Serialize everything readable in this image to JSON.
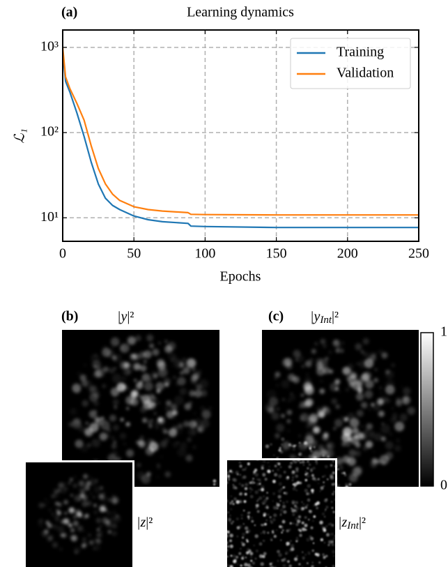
{
  "chart_data": {
    "type": "line",
    "label": "(a)",
    "title": "Learning dynamics",
    "x_label": "Epochs",
    "y_label": "ℒ₁",
    "x": [
      0,
      2,
      5,
      10,
      15,
      20,
      25,
      30,
      35,
      40,
      50,
      60,
      70,
      88,
      90,
      100,
      150,
      200,
      250
    ],
    "series": [
      {
        "name": "Training",
        "color": "#1f77b4",
        "values": [
          900,
          400,
          300,
          170,
          90,
          45,
          25,
          17,
          14,
          12.5,
          10.5,
          9.5,
          9,
          8.6,
          8,
          7.9,
          7.7,
          7.7,
          7.7
        ]
      },
      {
        "name": "Validation",
        "color": "#ff7f0e",
        "values": [
          1000,
          450,
          330,
          220,
          140,
          70,
          38,
          25,
          19,
          16,
          13.5,
          12.5,
          12,
          11.5,
          11,
          10.9,
          10.8,
          10.8,
          10.8
        ]
      }
    ],
    "xlim": [
      0,
      250
    ],
    "xticks": [
      0,
      50,
      100,
      150,
      200,
      250
    ],
    "ylim": [
      5.3,
      1600
    ],
    "yscale": "log",
    "yticks": [
      {
        "value": 10,
        "label": "10¹"
      },
      {
        "value": 100,
        "label": "10²"
      },
      {
        "value": 1000,
        "label": "10³"
      }
    ],
    "grid": true,
    "legend": "upper right"
  },
  "panels": {
    "b": {
      "label": "(b)",
      "main": {
        "base": "|y",
        "sub": "",
        "end": "|²"
      },
      "inset": {
        "base": "|z",
        "sub": "",
        "end": "|²"
      }
    },
    "c": {
      "label": "(c)",
      "main": {
        "base": "|y",
        "sub": "Int",
        "end": "|²"
      },
      "inset": {
        "base": "|z",
        "sub": "Int",
        "end": "|²"
      }
    }
  },
  "colorbar": {
    "lim": [
      0,
      1
    ],
    "ticks": [
      0,
      1
    ]
  }
}
